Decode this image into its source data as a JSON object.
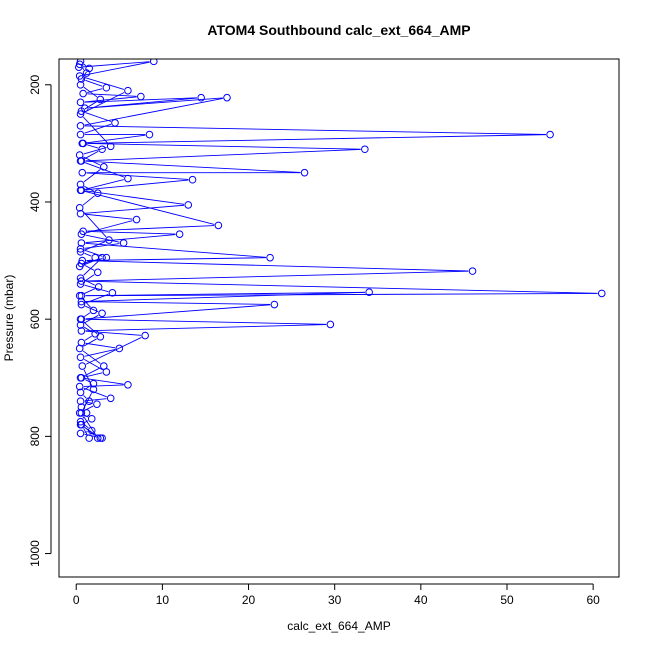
{
  "chart_data": {
    "type": "line",
    "title": "ATOM4 Southbound calc_ext_664_AMP",
    "xlabel": "calc_ext_664_AMP",
    "ylabel": "Pressure (mbar)",
    "xlim": [
      -2,
      63
    ],
    "ylim": [
      1040,
      156
    ],
    "y_reversed": true,
    "grid": false,
    "markers": "open-circle",
    "color": "#0000ff",
    "x_ticks": [
      0,
      10,
      20,
      30,
      40,
      50,
      60
    ],
    "y_ticks": [
      200,
      400,
      600,
      800,
      1000
    ],
    "series": [
      {
        "x": [
          0.5,
          1.5,
          0.6,
          3.5,
          0.8,
          7.5,
          0.5,
          14.5,
          1.0,
          17.5,
          0.5,
          55.0,
          0.8,
          33.5,
          0.6,
          26.5,
          0.7,
          13.5,
          0.5,
          16.5,
          0.8,
          12.0,
          0.6,
          22.5,
          0.7,
          46.0,
          0.6,
          61.0,
          0.6,
          34.0,
          0.6,
          23.0,
          0.6,
          29.5,
          0.6,
          8.0,
          0.7,
          2.0,
          0.6,
          2.5,
          0.6,
          1.5
        ],
        "y": [
          160,
          172,
          190,
          205,
          215,
          220,
          230,
          222,
          240,
          222,
          270,
          285,
          300,
          310,
          330,
          350,
          350,
          362,
          380,
          440,
          450,
          455,
          470,
          495,
          500,
          518,
          535,
          556,
          560,
          554,
          570,
          575,
          600,
          609,
          620,
          628,
          680,
          720,
          760,
          803,
          780,
          803
        ]
      },
      {
        "x": [
          0.4,
          1.2,
          0.5,
          2.8,
          0.6,
          4.5,
          0.5,
          8.5,
          0.7,
          3.0,
          0.5,
          6.0,
          0.6,
          13.0,
          0.5,
          7.0,
          0.6,
          5.5,
          0.5,
          3.5,
          0.6,
          2.5,
          0.5,
          4.2,
          0.6,
          3.0,
          0.5,
          2.2,
          0.6,
          5.0,
          0.5,
          3.5,
          0.6,
          2.0,
          0.5,
          1.5,
          0.6,
          1.2,
          0.5,
          1.8,
          0.5,
          3.0
        ],
        "y": [
          165,
          180,
          200,
          225,
          245,
          265,
          285,
          285,
          300,
          310,
          330,
          360,
          380,
          405,
          420,
          430,
          455,
          470,
          480,
          495,
          505,
          520,
          540,
          555,
          575,
          590,
          610,
          625,
          640,
          650,
          665,
          690,
          700,
          710,
          725,
          740,
          750,
          760,
          775,
          790,
          795,
          803
        ]
      },
      {
        "x": [
          0.3,
          9.0,
          0.4,
          6.0,
          0.5,
          4.0,
          0.4,
          3.2,
          0.5,
          2.5,
          0.4,
          3.8,
          0.5,
          2.2,
          0.4,
          3.0,
          0.5,
          2.6,
          0.4,
          2.0,
          0.5,
          2.8,
          0.4,
          3.2,
          0.5,
          6.0,
          0.4,
          4.0,
          0.5,
          2.4,
          0.4,
          1.8,
          0.5,
          2.8
        ],
        "y": [
          170,
          160,
          185,
          210,
          250,
          305,
          320,
          340,
          370,
          385,
          410,
          465,
          485,
          495,
          510,
          495,
          530,
          545,
          560,
          585,
          600,
          630,
          650,
          680,
          700,
          712,
          715,
          735,
          740,
          745,
          760,
          770,
          780,
          803
        ]
      }
    ]
  }
}
